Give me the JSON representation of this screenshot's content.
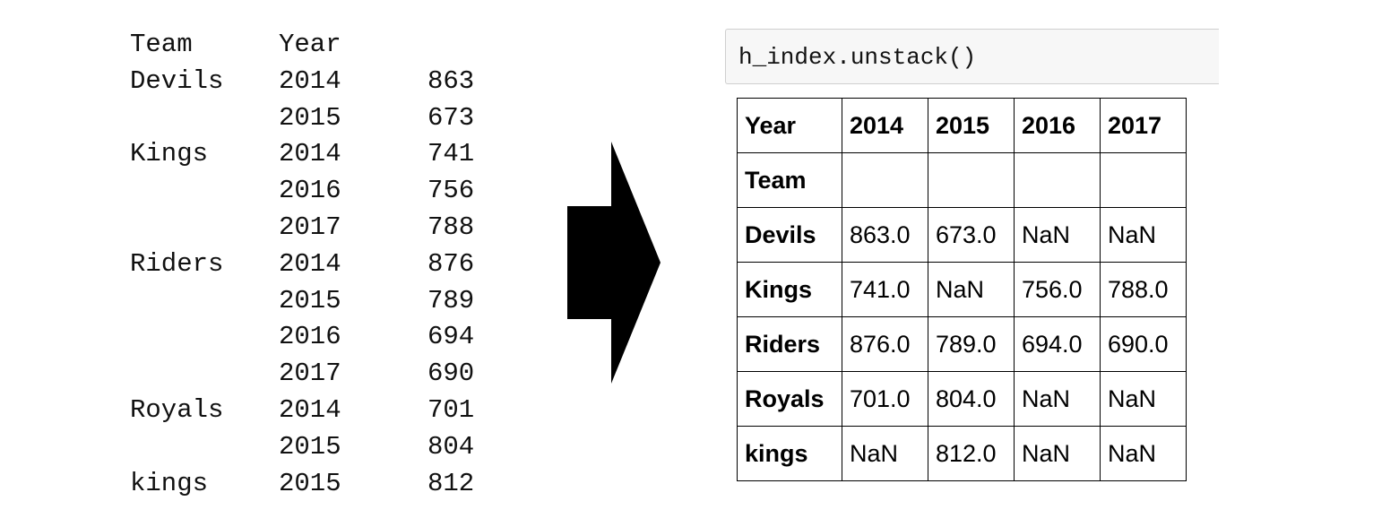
{
  "series": {
    "header": {
      "team": "Team",
      "year": "Year"
    },
    "rows": [
      {
        "team": "Devils",
        "year": "2014",
        "value": "863"
      },
      {
        "team": "",
        "year": "2015",
        "value": "673"
      },
      {
        "team": "Kings",
        "year": "2014",
        "value": "741"
      },
      {
        "team": "",
        "year": "2016",
        "value": "756"
      },
      {
        "team": "",
        "year": "2017",
        "value": "788"
      },
      {
        "team": "Riders",
        "year": "2014",
        "value": "876"
      },
      {
        "team": "",
        "year": "2015",
        "value": "789"
      },
      {
        "team": "",
        "year": "2016",
        "value": "694"
      },
      {
        "team": "",
        "year": "2017",
        "value": "690"
      },
      {
        "team": "Royals",
        "year": "2014",
        "value": "701"
      },
      {
        "team": "",
        "year": "2015",
        "value": "804"
      },
      {
        "team": "kings",
        "year": "2015",
        "value": "812"
      }
    ]
  },
  "arrow": {
    "icon": "right-arrow-icon",
    "color": "#000000"
  },
  "code_cell": {
    "code": "h_index.unstack()"
  },
  "table": {
    "columns_label": "Year",
    "columns": [
      "2014",
      "2015",
      "2016",
      "2017"
    ],
    "index_label": "Team",
    "rows": [
      {
        "team": "Devils",
        "values": [
          "863.0",
          "673.0",
          "NaN",
          "NaN"
        ]
      },
      {
        "team": "Kings",
        "values": [
          "741.0",
          "NaN",
          "756.0",
          "788.0"
        ]
      },
      {
        "team": "Riders",
        "values": [
          "876.0",
          "789.0",
          "694.0",
          "690.0"
        ]
      },
      {
        "team": "Royals",
        "values": [
          "701.0",
          "804.0",
          "NaN",
          "NaN"
        ]
      },
      {
        "team": "kings",
        "values": [
          "NaN",
          "812.0",
          "NaN",
          "NaN"
        ]
      }
    ]
  }
}
